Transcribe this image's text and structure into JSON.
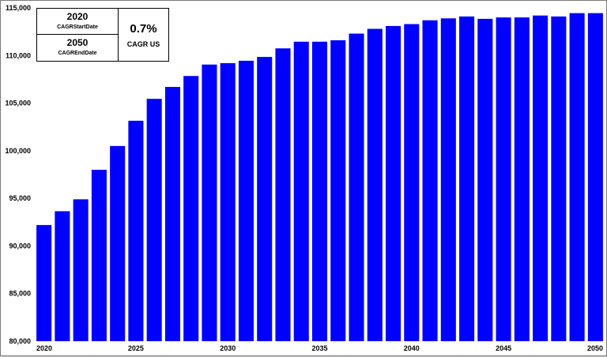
{
  "chart_data": {
    "type": "bar",
    "title": "",
    "xlabel": "",
    "ylabel": "",
    "ylim": [
      80000,
      115000
    ],
    "yticks": [
      80000,
      85000,
      90000,
      95000,
      100000,
      105000,
      110000,
      115000
    ],
    "ytick_labels": [
      "80,000",
      "85,000",
      "90,000",
      "95,000",
      "100,000",
      "105,000",
      "110,000",
      "115,000"
    ],
    "xtick_labels": [
      "2020",
      "2025",
      "2030",
      "2035",
      "2040",
      "2045",
      "2050"
    ],
    "xtick_years": [
      2020,
      2025,
      2030,
      2035,
      2040,
      2045,
      2050
    ],
    "categories": [
      2020,
      2021,
      2022,
      2023,
      2024,
      2025,
      2026,
      2027,
      2028,
      2029,
      2030,
      2031,
      2032,
      2033,
      2034,
      2035,
      2036,
      2037,
      2038,
      2039,
      2040,
      2041,
      2042,
      2043,
      2044,
      2045,
      2046,
      2047,
      2048,
      2049,
      2050
    ],
    "values": [
      92200,
      93650,
      94900,
      98000,
      100500,
      103150,
      105450,
      106700,
      107850,
      109050,
      109200,
      109450,
      109850,
      110750,
      111450,
      111450,
      111600,
      112300,
      112800,
      113100,
      113300,
      113700,
      113900,
      114100,
      113850,
      114000,
      114000,
      114200,
      114100,
      114450,
      114450
    ],
    "bar_color": "#0000ff",
    "grid": false,
    "legend": "top-left"
  },
  "cagr_panel": {
    "start_year": "2020",
    "start_caption": "CAGRStartDate",
    "end_year": "2050",
    "end_caption": "CAGREndDate",
    "value": "0.7%",
    "metric": "CAGR US"
  }
}
